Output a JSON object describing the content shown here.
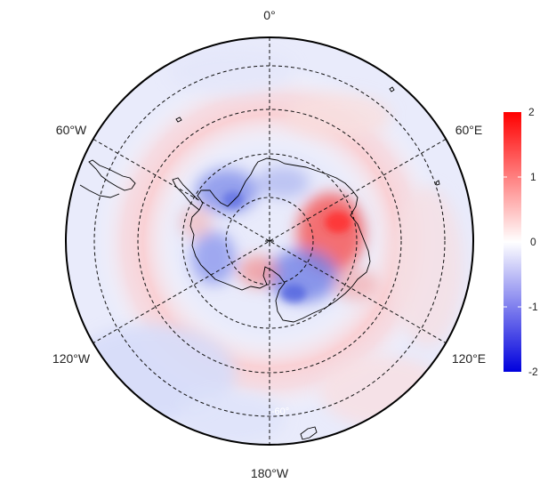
{
  "map": {
    "projection": "south-polar-stereographic",
    "longitude_labels": {
      "top": "0°",
      "upper_right": "60°E",
      "lower_right": "120°E",
      "bottom": "180°W",
      "lower_left": "120°W",
      "upper_left": "60°W"
    },
    "latitude_label": "-60°",
    "graticule": "dashed",
    "coastline": "Antarctica outline"
  },
  "colorbar": {
    "ticks": [
      "2",
      "1",
      "0",
      "-1",
      "-2"
    ],
    "range": [
      -2,
      2
    ],
    "colors": {
      "high": "#ff0000",
      "mid": "#ffffff",
      "low": "#0000dd"
    }
  }
}
